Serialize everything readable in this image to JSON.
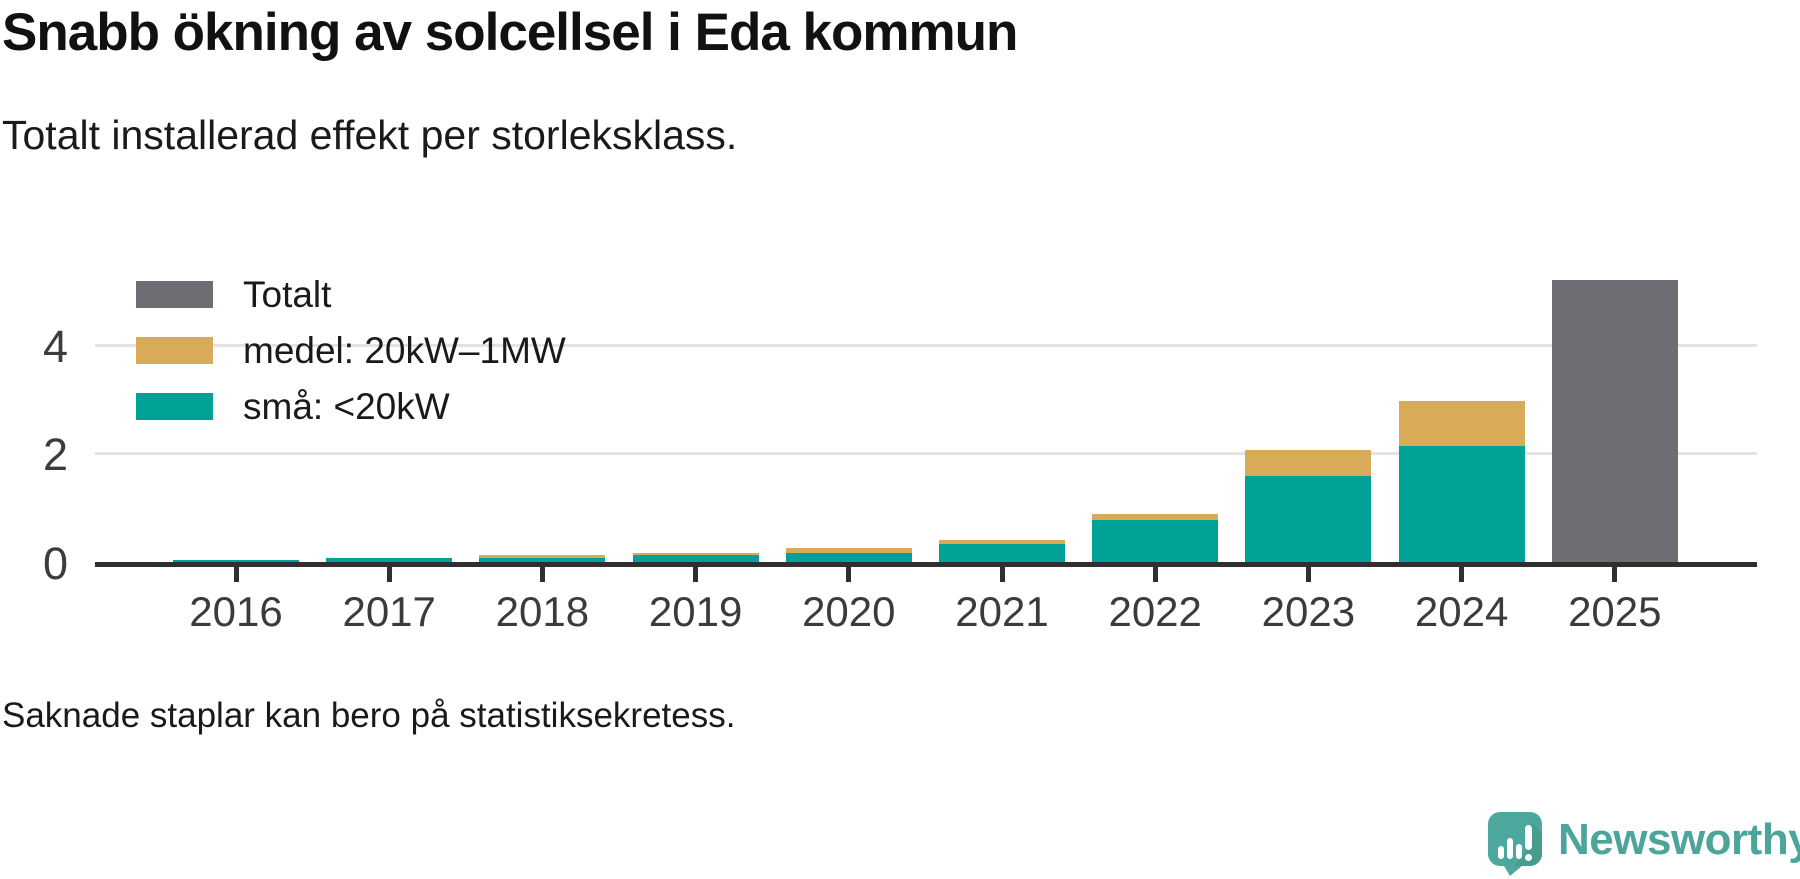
{
  "header": {
    "title": "Snabb ökning av solcellsel i Eda kommun",
    "subtitle": "Totalt installerad effekt per storleksklass."
  },
  "legend": {
    "items": [
      {
        "label": "Totalt",
        "color": "#6d6d73"
      },
      {
        "label": "medel: 20kW–1MW",
        "color": "#d9ab58"
      },
      {
        "label": "små: <20kW",
        "color": "#00a298"
      }
    ]
  },
  "chart_data": {
    "type": "bar",
    "stacked": true,
    "title": "Snabb ökning av solcellsel i Eda kommun",
    "subtitle": "Totalt installerad effekt per storleksklass.",
    "categories": [
      "2016",
      "2017",
      "2018",
      "2019",
      "2020",
      "2021",
      "2022",
      "2023",
      "2024",
      "2025"
    ],
    "series": [
      {
        "name": "små: <20kW",
        "color": "#00a298",
        "values": [
          0.04,
          0.08,
          0.07,
          0.12,
          0.17,
          0.33,
          0.77,
          1.59,
          2.13,
          null
        ]
      },
      {
        "name": "medel: 20kW–1MW",
        "color": "#d9ab58",
        "values": [
          null,
          null,
          0.05,
          0.04,
          0.08,
          0.08,
          0.12,
          0.47,
          0.84,
          null
        ]
      },
      {
        "name": "Totalt",
        "color": "#6d6d73",
        "values": [
          null,
          null,
          null,
          null,
          null,
          null,
          null,
          null,
          null,
          5.19
        ]
      }
    ],
    "xlabel": "",
    "ylabel": "",
    "yticks": [
      0,
      2,
      4
    ],
    "ylim": [
      0,
      5.4
    ],
    "grid": "horizontal-at-2-and-4",
    "legend_position": "top-left",
    "axis_color": "#2f2f2f",
    "gridline_color": "#e3e3e3"
  },
  "footer": {
    "note": "Saknade staplar kan bero på statistiksekretess.",
    "brand": "Newsworthy",
    "brand_color": "#4ba59a"
  }
}
